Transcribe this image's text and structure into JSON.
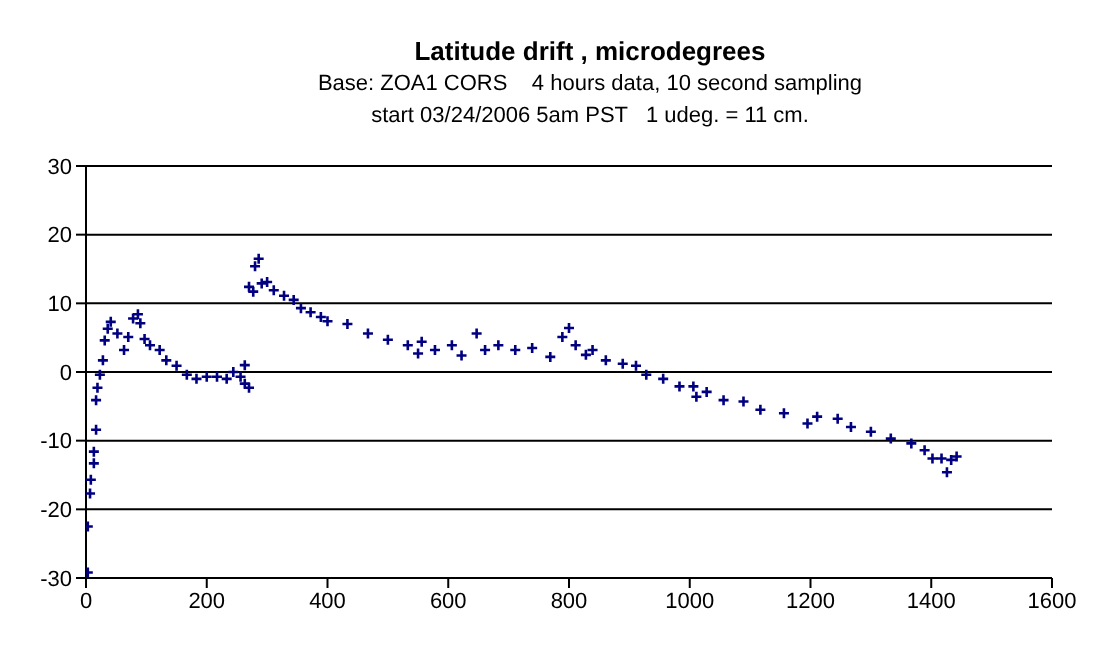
{
  "chart_data": {
    "type": "scatter",
    "title": "Latitude drift , microdegrees",
    "subtitle": "Base: ZOA1 CORS    4 hours data, 10 second sampling\nstart 03/24/2006 5am PST   1 udeg. = 11 cm.",
    "x": [
      3,
      3,
      6.7,
      8,
      13,
      13,
      16.7,
      16.7,
      19,
      23,
      28,
      31,
      36,
      41,
      52,
      63,
      70,
      78,
      86,
      90,
      97,
      106,
      122,
      133,
      150,
      167,
      183,
      200,
      217,
      233,
      244,
      256,
      263,
      263,
      270,
      270,
      277,
      280,
      286,
      291,
      300,
      311,
      328,
      344,
      356,
      372,
      389,
      400,
      433,
      467,
      500,
      533,
      550,
      556,
      578,
      606,
      622,
      647,
      661,
      683,
      711,
      739,
      769,
      789,
      800,
      811,
      828,
      839,
      861,
      889,
      911,
      928,
      956,
      983,
      1006,
      1011,
      1028,
      1056,
      1089,
      1117,
      1156,
      1195,
      1211,
      1245,
      1267,
      1300,
      1333,
      1367,
      1389,
      1402,
      1417,
      1426,
      1433,
      1442
    ],
    "series": [
      {
        "color": "#000080",
        "values": [
          -29.2,
          -22.5,
          -17.7,
          -15.7,
          -13.3,
          -11.6,
          -8.4,
          -4.1,
          -2.3,
          -0.4,
          1.7,
          4.6,
          6.3,
          7.3,
          5.6,
          3.2,
          5.1,
          7.8,
          8.4,
          7.1,
          4.8,
          3.9,
          3.2,
          1.7,
          0.9,
          -0.4,
          -1,
          -0.7,
          -0.7,
          -1,
          0,
          -0.7,
          1,
          -1.7,
          -2.3,
          12.4,
          11.7,
          15.4,
          16.5,
          12.9,
          13.1,
          11.9,
          11.1,
          10.5,
          9.3,
          8.7,
          8,
          7.4,
          7,
          5.6,
          4.7,
          3.9,
          2.7,
          4.4,
          3.2,
          3.9,
          2.4,
          5.6,
          3.2,
          3.9,
          3.2,
          3.5,
          2.2,
          5.1,
          6.4,
          3.9,
          2.5,
          3.2,
          1.7,
          1.2,
          0.9,
          -0.4,
          -1,
          -2.1,
          -2.1,
          -3.6,
          -2.9,
          -4.1,
          -4.3,
          -5.5,
          -6,
          -7.5,
          -6.5,
          -6.8,
          -8,
          -8.7,
          -9.7,
          -10.4,
          -11.4,
          -12.6,
          -12.6,
          -14.6,
          -12.8,
          -12.3
        ]
      }
    ],
    "xlim": [
      0,
      1600
    ],
    "xticks": [
      0,
      200,
      400,
      600,
      800,
      1000,
      1200,
      1400,
      1600
    ],
    "ylim": [
      -30,
      30
    ],
    "yticks": [
      -30,
      -20,
      -10,
      0,
      10,
      20,
      30
    ],
    "grid": "y",
    "marker": "cross"
  }
}
